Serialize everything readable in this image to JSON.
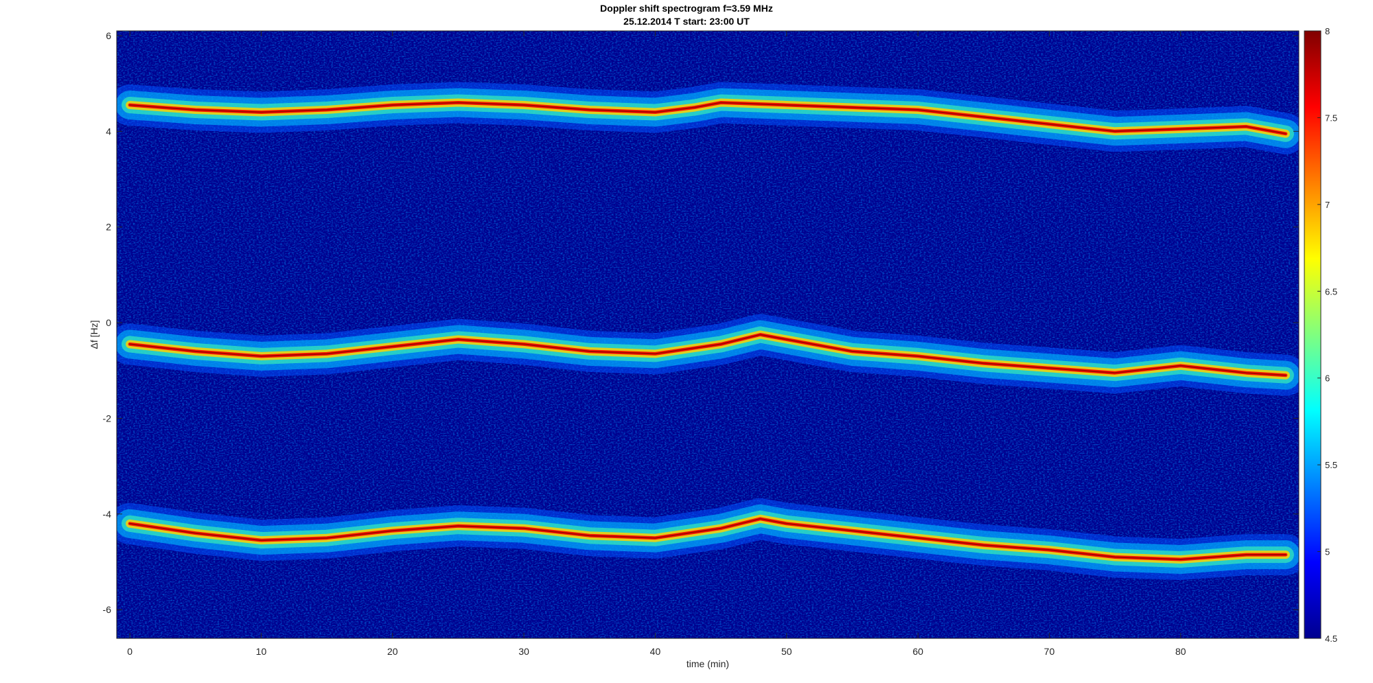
{
  "chart_data": {
    "type": "heatmap",
    "title": "Doppler shift spectrogram f=3.59 MHz",
    "subtitle": "25.12.2014   T start: 23:00 UT",
    "xlabel": "time (min)",
    "ylabel": "Δf [Hz]",
    "xlim": [
      -1,
      89
    ],
    "ylim": [
      -6.6,
      6.1
    ],
    "x_ticks": [
      0,
      10,
      20,
      30,
      40,
      50,
      60,
      70,
      80
    ],
    "y_ticks": [
      6,
      4,
      2,
      0,
      -2,
      -4,
      -6
    ],
    "colorbar": {
      "range": [
        4.5,
        8
      ],
      "ticks": [
        8,
        7.5,
        7,
        6.5,
        6,
        5.5,
        5,
        4.5
      ],
      "colormap": "jet"
    },
    "grid": false,
    "traces": [
      {
        "x": [
          0,
          5,
          10,
          15,
          20,
          25,
          30,
          35,
          40,
          43,
          45,
          50,
          55,
          60,
          65,
          70,
          75,
          80,
          85,
          88
        ],
        "y": [
          4.55,
          4.45,
          4.4,
          4.45,
          4.55,
          4.6,
          4.55,
          4.45,
          4.4,
          4.5,
          4.6,
          4.55,
          4.5,
          4.45,
          4.3,
          4.15,
          4.0,
          4.05,
          4.1,
          3.95
        ]
      },
      {
        "x": [
          0,
          5,
          10,
          15,
          20,
          25,
          30,
          35,
          40,
          45,
          48,
          50,
          55,
          60,
          65,
          70,
          75,
          80,
          85,
          88
        ],
        "y": [
          -0.45,
          -0.6,
          -0.7,
          -0.65,
          -0.5,
          -0.35,
          -0.45,
          -0.6,
          -0.65,
          -0.45,
          -0.25,
          -0.35,
          -0.6,
          -0.7,
          -0.85,
          -0.95,
          -1.05,
          -0.9,
          -1.05,
          -1.1
        ]
      },
      {
        "x": [
          0,
          5,
          10,
          15,
          20,
          25,
          30,
          35,
          40,
          45,
          48,
          50,
          55,
          60,
          65,
          70,
          75,
          80,
          85,
          88
        ],
        "y": [
          -4.2,
          -4.4,
          -4.55,
          -4.5,
          -4.35,
          -4.25,
          -4.3,
          -4.45,
          -4.5,
          -4.3,
          -4.1,
          -4.2,
          -4.35,
          -4.5,
          -4.65,
          -4.75,
          -4.9,
          -4.95,
          -4.85,
          -4.85
        ]
      }
    ]
  },
  "colors": {
    "background": "#00008f",
    "axis": "#262626"
  }
}
